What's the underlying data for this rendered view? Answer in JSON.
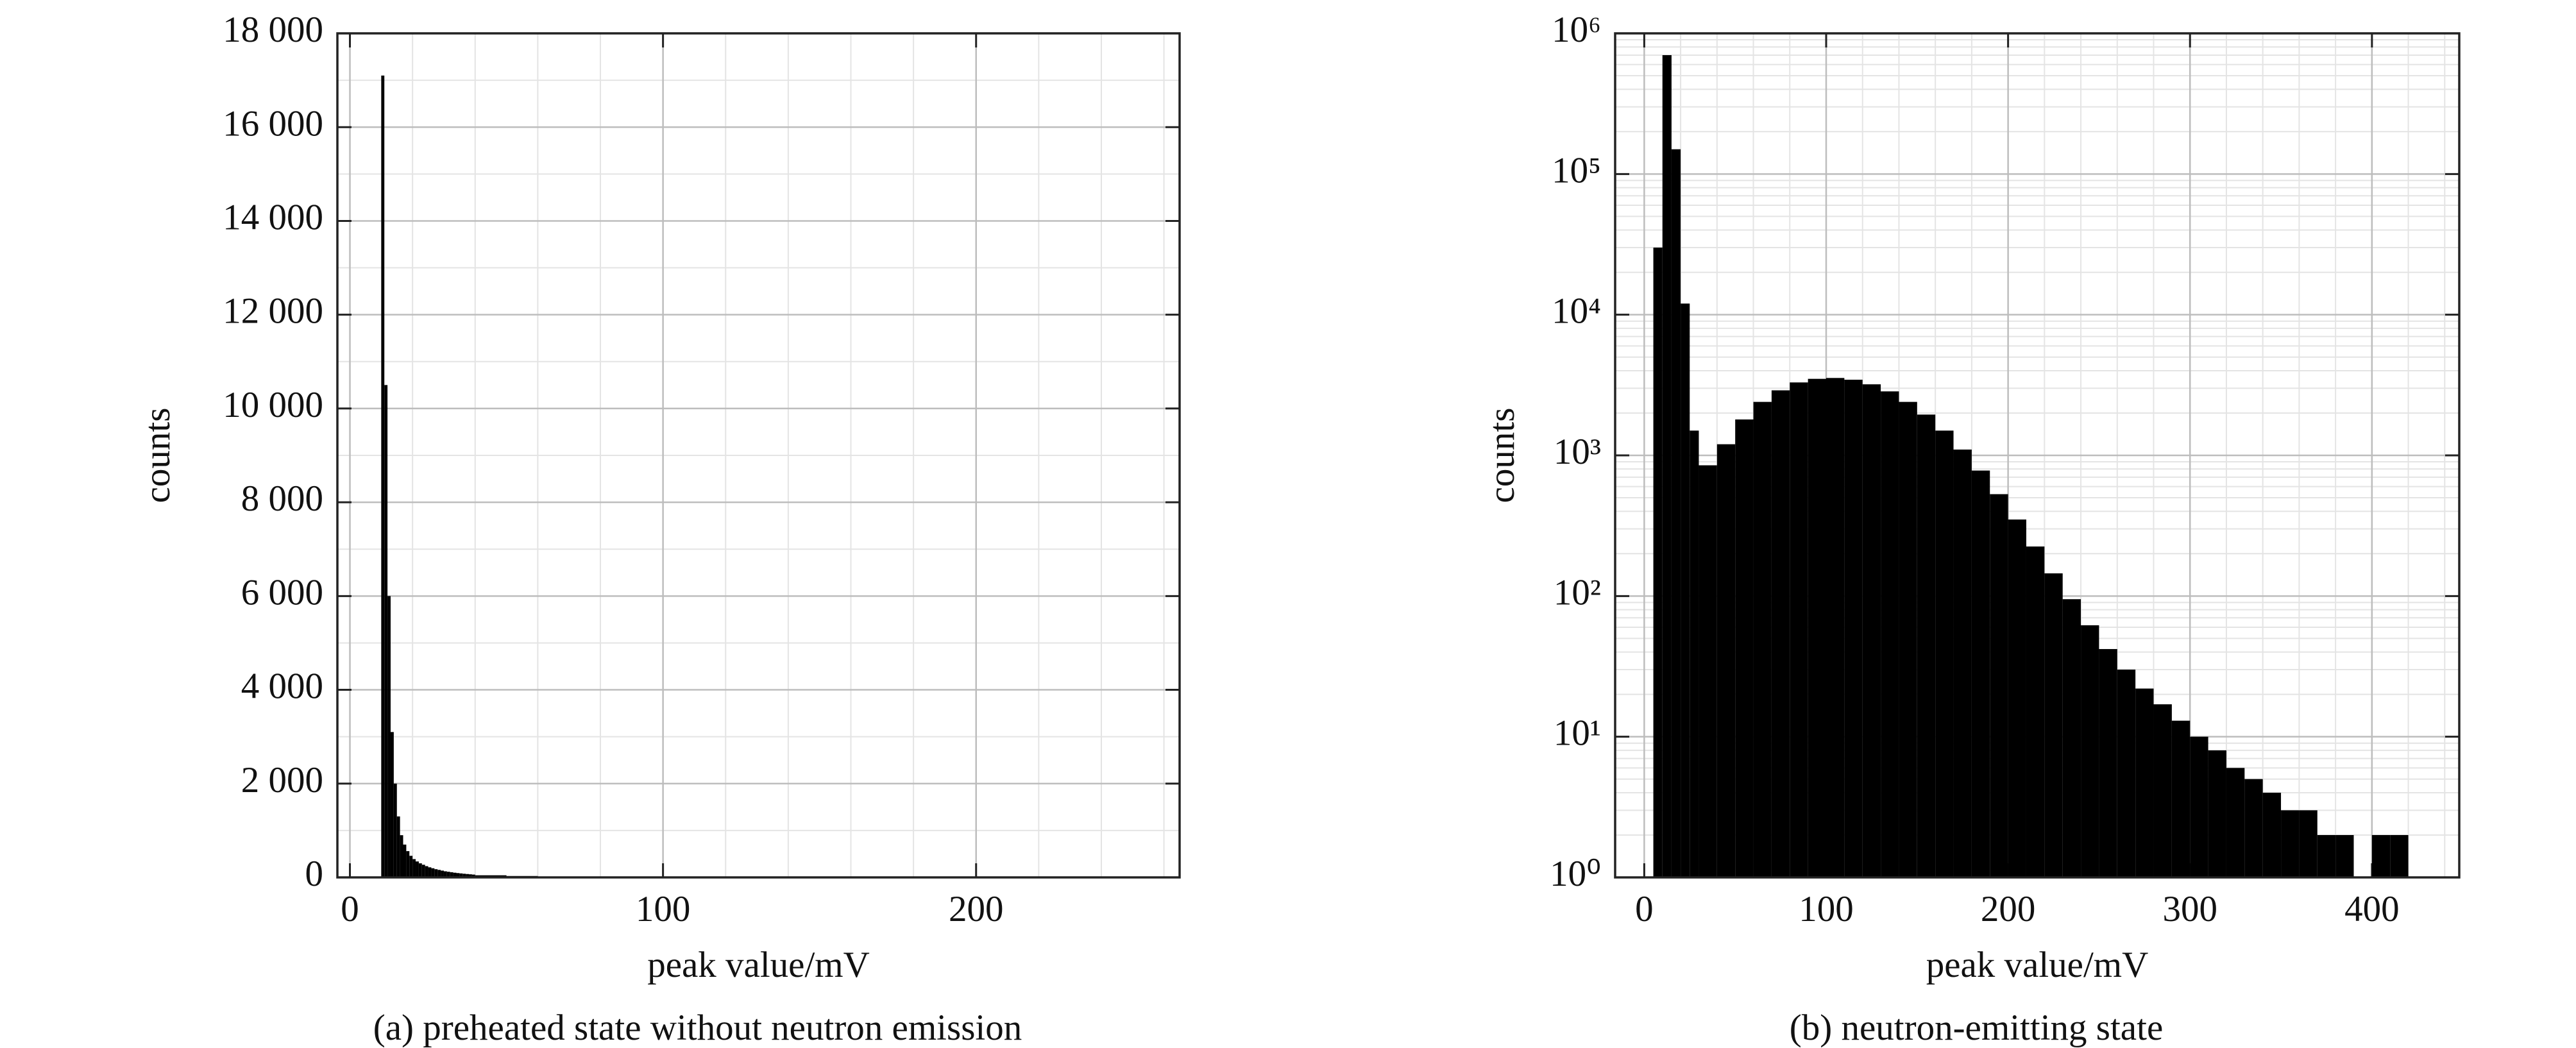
{
  "chart_data": [
    {
      "type": "histogram",
      "title": "(a) preheated state without neutron emission",
      "xlabel": "peak value/mV",
      "ylabel": "counts",
      "bins": [
        10,
        11,
        12,
        13,
        14,
        15,
        16,
        17,
        18,
        19,
        20,
        21,
        22,
        23,
        24,
        25,
        26,
        27,
        28,
        29,
        30,
        31,
        32,
        33,
        34,
        35,
        36,
        37,
        38,
        39,
        40,
        50,
        60,
        70,
        80,
        90,
        100,
        120,
        140,
        160,
        180,
        200,
        220,
        240,
        260
      ],
      "counts": [
        17100,
        10500,
        6000,
        3100,
        2000,
        1300,
        900,
        700,
        560,
        460,
        390,
        340,
        300,
        270,
        240,
        215,
        195,
        175,
        160,
        145,
        130,
        120,
        110,
        100,
        92,
        85,
        78,
        72,
        66,
        60,
        45,
        30,
        20,
        14,
        10,
        8,
        6,
        4,
        3,
        2,
        2,
        1,
        1,
        1
      ],
      "color": "#000000",
      "xlim": [
        -4,
        265
      ],
      "ylim": [
        0,
        18000
      ],
      "yscale": "linear",
      "xticks": [
        0,
        100,
        200
      ],
      "yticks": [
        0,
        {
          "value": 2000,
          "label": "2 000"
        },
        {
          "value": 4000,
          "label": "4 000"
        },
        {
          "value": 6000,
          "label": "6 000"
        },
        {
          "value": 8000,
          "label": "8 000"
        },
        {
          "value": 10000,
          "label": "10 000"
        },
        {
          "value": 12000,
          "label": "12 000"
        },
        {
          "value": 14000,
          "label": "14 000"
        },
        {
          "value": 16000,
          "label": "16 000"
        },
        {
          "value": 18000,
          "label": "18 000"
        }
      ],
      "grid": true
    },
    {
      "type": "histogram",
      "title": "(b) neutron-emitting state",
      "xlabel": "peak value/mV",
      "ylabel": "counts",
      "bins": [
        5,
        10,
        15,
        20,
        25,
        30,
        40,
        50,
        60,
        70,
        80,
        90,
        100,
        110,
        120,
        130,
        140,
        150,
        160,
        170,
        180,
        190,
        200,
        210,
        220,
        230,
        240,
        250,
        260,
        270,
        280,
        290,
        300,
        310,
        320,
        330,
        340,
        350,
        360,
        370,
        380,
        390,
        400,
        410,
        420,
        430,
        440,
        450,
        460,
        470
      ],
      "counts": [
        30000,
        700000,
        150000,
        12000,
        1500,
        850,
        1200,
        1800,
        2400,
        2900,
        3300,
        3500,
        3550,
        3450,
        3200,
        2850,
        2400,
        1950,
        1500,
        1100,
        780,
        530,
        350,
        225,
        145,
        95,
        62,
        42,
        30,
        22,
        17,
        13,
        10,
        8,
        6,
        5,
        4,
        3,
        3,
        2,
        2,
        1,
        2,
        2,
        1,
        1,
        1,
        0,
        1
      ],
      "color": "#000000",
      "xlim": [
        -16,
        448
      ],
      "ylim": [
        1,
        1000000
      ],
      "yscale": "log",
      "xticks": [
        0,
        100,
        200,
        300,
        400
      ],
      "yticks": [
        {
          "value": 1,
          "label": "10⁰"
        },
        {
          "value": 10,
          "label": "10¹"
        },
        {
          "value": 100,
          "label": "10²"
        },
        {
          "value": 1000,
          "label": "10³"
        },
        {
          "value": 10000,
          "label": "10⁴"
        },
        {
          "value": 100000,
          "label": "10⁵"
        },
        {
          "value": 1000000,
          "label": "10⁶"
        }
      ],
      "grid": true
    }
  ]
}
